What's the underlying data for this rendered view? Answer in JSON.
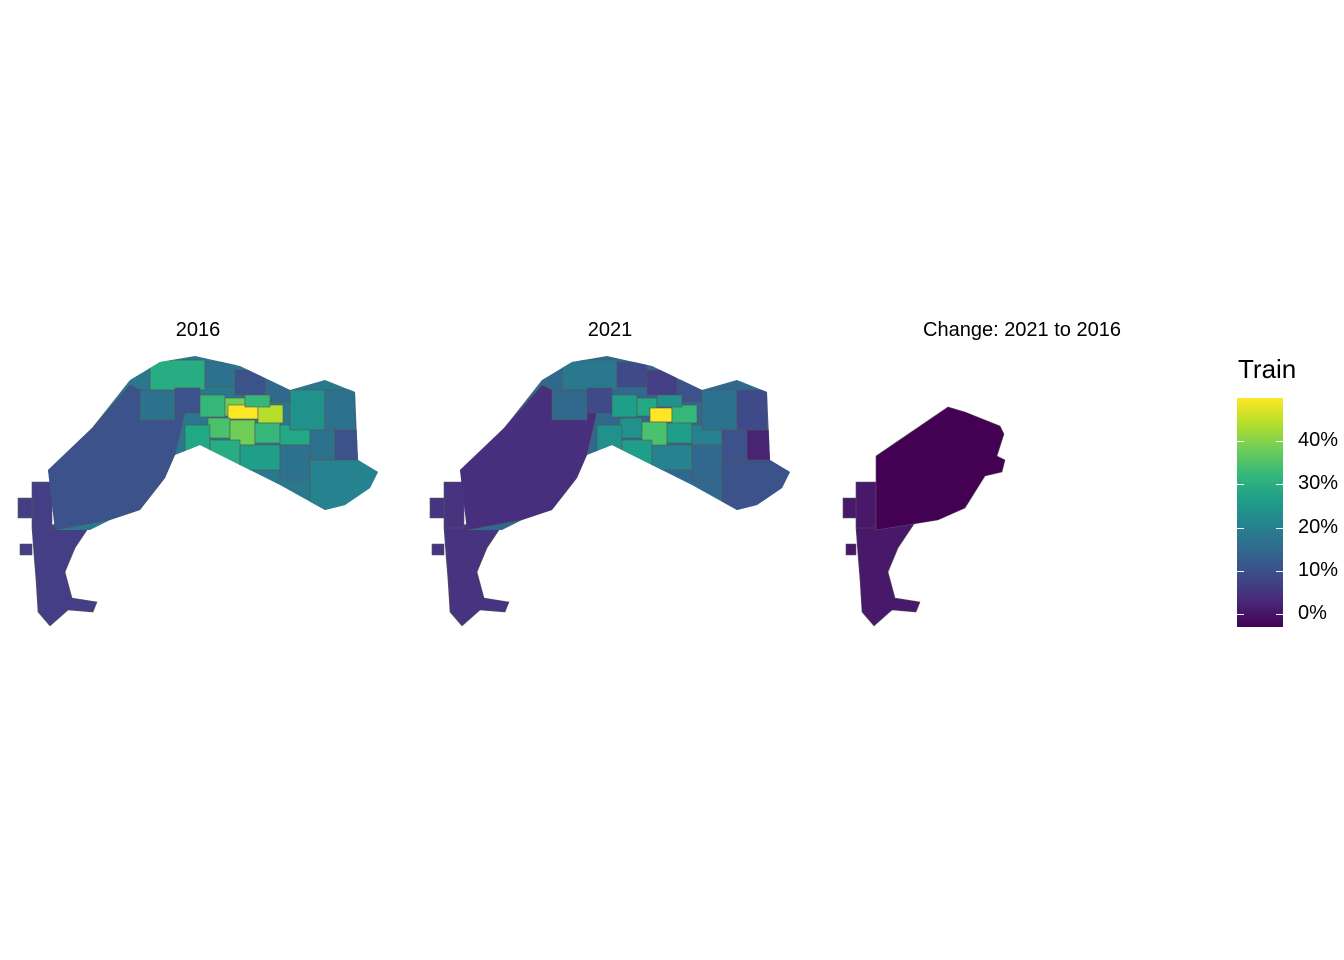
{
  "panels": [
    {
      "title": "2016"
    },
    {
      "title": "2021"
    },
    {
      "title": "Change: 2021 to 2016"
    }
  ],
  "legend": {
    "title": "Train",
    "ticks": [
      {
        "label": "40%",
        "value": 40
      },
      {
        "label": "30%",
        "value": 30
      },
      {
        "label": "20%",
        "value": 20
      },
      {
        "label": "10%",
        "value": 10
      },
      {
        "label": "0%",
        "value": 0
      }
    ],
    "range": [
      -3,
      50
    ],
    "palette": [
      "#440154",
      "#482878",
      "#3e4a89",
      "#31688e",
      "#26828e",
      "#1f9e89",
      "#35b779",
      "#6ece58",
      "#b5de2b",
      "#fde725"
    ]
  }
}
